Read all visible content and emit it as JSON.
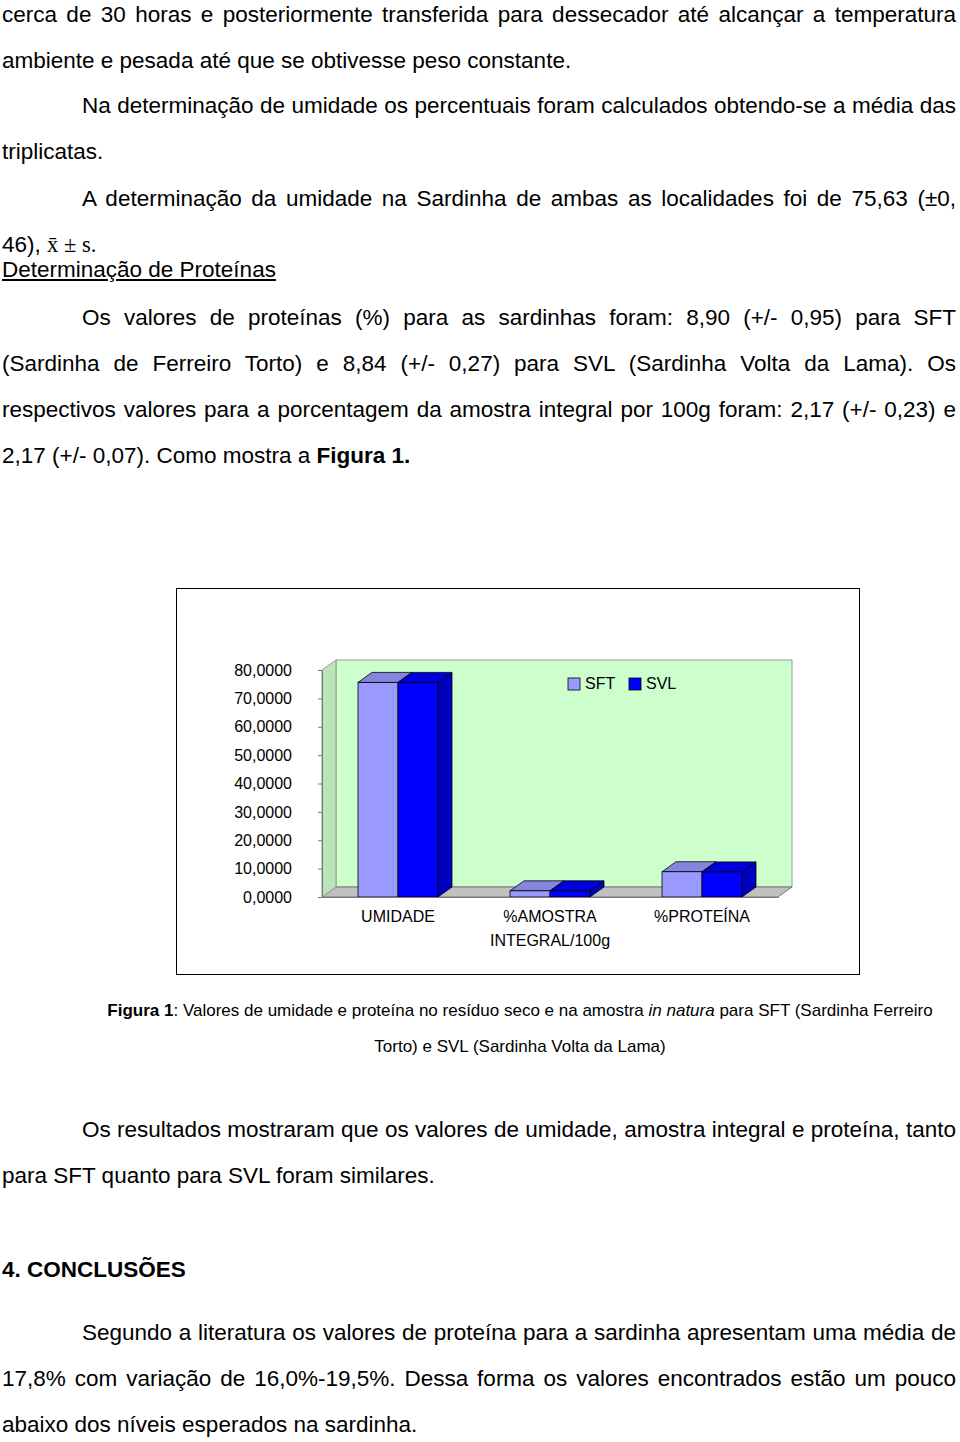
{
  "document": {
    "blocks": [
      {
        "parts": [
          {
            "text": "cerca de 30 horas e posteriormente transferida para dessecador até alcançar a temperatura ambiente e pesada até que se obtivesse peso constante."
          }
        ]
      },
      {
        "parts": [
          {
            "text": "Na determinação de umidade os percentuais foram calculados obtendo-se a média das triplicatas."
          }
        ]
      },
      {
        "parts": [
          {
            "text": "A determinação da umidade na Sardinha de ambas as localidades foi de 75,63 (±0, 46), "
          },
          {
            "text": "x̄ ± s.",
            "math": true
          }
        ]
      },
      {
        "parts": [
          {
            "text": "Determinação de Proteínas",
            "underline": true
          }
        ]
      },
      {
        "parts": [
          {
            "text": "Os valores de proteínas (%) para as sardinhas foram: 8,90 (+/- 0,95) para SFT (Sardinha de Ferreiro Torto) e 8,84 (+/- 0,27) para SVL (Sardinha Volta da Lama). Os respectivos valores para a porcentagem da amostra integral por 100g foram: 2,17 (+/- 0,23) e 2,17 (+/- 0,07). Como mostra a "
          },
          {
            "text": "Figura 1.",
            "bold": true
          }
        ]
      },
      {
        "parts": [
          {
            "text": "Os resultados mostraram que os valores de umidade, amostra integral e proteína, tanto para SFT quanto para SVL foram similares."
          }
        ]
      },
      {
        "parts": [
          {
            "text": "4. CONCLUSÕES",
            "bold": true
          }
        ]
      },
      {
        "parts": [
          {
            "text": "Segundo a literatura os valores de proteína para a sardinha apresentam uma média de 17,8% com variação de 16,0%-19,5%. Dessa forma os valores encontrados estão um pouco abaixo dos níveis esperados na sardinha."
          }
        ]
      }
    ],
    "caption": {
      "parts": [
        {
          "text": "Figura 1",
          "bold": true
        },
        {
          "text": ": Valores de umidade e proteína no resíduo seco e na amostra "
        },
        {
          "text": "in natura",
          "italic": true
        },
        {
          "text": " para SFT (Sardinha Ferreiro Torto) e SVL (Sardinha Volta da Lama)"
        }
      ]
    }
  },
  "chart_data": {
    "type": "bar",
    "categories": [
      "UMIDADE",
      "%AMOSTRA INTEGRAL/100g",
      "%PROTEÍNA"
    ],
    "series": [
      {
        "name": "SFT",
        "color": "#9999ff",
        "values": [
          75.63,
          2.17,
          8.9
        ]
      },
      {
        "name": "SVL",
        "color": "#0000ff",
        "values": [
          75.63,
          2.17,
          8.84
        ]
      }
    ],
    "ylim": [
      0,
      80
    ],
    "yticks": [
      {
        "value": 0,
        "label": "0,0000"
      },
      {
        "value": 10,
        "label": "10,0000"
      },
      {
        "value": 20,
        "label": "20,0000"
      },
      {
        "value": 30,
        "label": "30,0000"
      },
      {
        "value": 40,
        "label": "40,0000"
      },
      {
        "value": 50,
        "label": "50,0000"
      },
      {
        "value": 60,
        "label": "60,0000"
      },
      {
        "value": 70,
        "label": "70,0000"
      },
      {
        "value": 80,
        "label": "80,0000"
      }
    ],
    "legend": "top-right",
    "grid": false
  }
}
